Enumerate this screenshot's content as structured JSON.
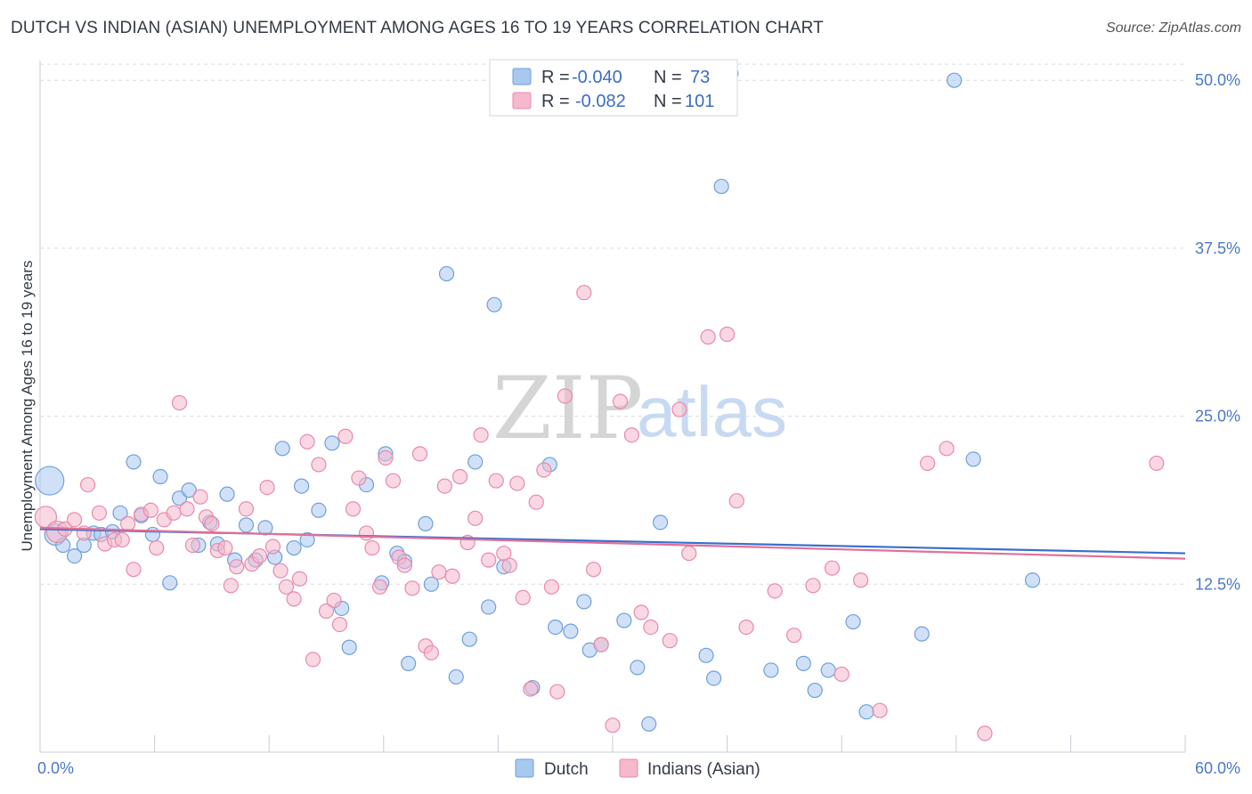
{
  "title": "DUTCH VS INDIAN (ASIAN) UNEMPLOYMENT AMONG AGES 16 TO 19 YEARS CORRELATION CHART",
  "source": "Source: ZipAtlas.com",
  "watermark": {
    "zip": "ZIP",
    "atlas": "atlas"
  },
  "colors": {
    "dutch_fill": "#a9c8f0",
    "dutch_stroke": "#6e9fdc",
    "dutch_line": "#3a6fcb",
    "indian_fill": "#f5b8cc",
    "indian_stroke": "#e88aa8",
    "indian_line": "#e0709a",
    "axis_text": "#4a78c8",
    "grid": "#d8dce4"
  },
  "legend": {
    "rows": [
      {
        "r_label": "R =",
        "r_value": "-0.040",
        "n_label": "N =",
        "n_value": "73"
      },
      {
        "r_label": "R =",
        "r_value": "-0.082",
        "n_label": "N =",
        "n_value": "101"
      }
    ]
  },
  "chart_data": {
    "type": "scatter",
    "title": "DUTCH VS INDIAN (ASIAN) UNEMPLOYMENT AMONG AGES 16 TO 19 YEARS CORRELATION CHART",
    "xlabel": "",
    "ylabel": "Unemployment Among Ages 16 to 19 years",
    "xlim": [
      0,
      60
    ],
    "ylim": [
      0,
      52
    ],
    "x_tick_labels": [
      "0.0%",
      "60.0%"
    ],
    "y_ticks": [
      12.5,
      25.0,
      37.5,
      50.0
    ],
    "y_tick_labels": [
      "12.5%",
      "25.0%",
      "37.5%",
      "50.0%"
    ],
    "grid": true,
    "series": [
      {
        "name": "Dutch",
        "r": -0.04,
        "n": 73,
        "trend": {
          "x": [
            0,
            60
          ],
          "y": [
            16.6,
            14.8
          ]
        },
        "points": [
          {
            "x": 0.5,
            "y": 20.2,
            "s": 3
          },
          {
            "x": 0.8,
            "y": 16.2,
            "s": 2
          },
          {
            "x": 1.2,
            "y": 15.4,
            "s": 1
          },
          {
            "x": 1.8,
            "y": 14.6,
            "s": 1
          },
          {
            "x": 2.3,
            "y": 15.4,
            "s": 1
          },
          {
            "x": 2.8,
            "y": 16.3,
            "s": 1
          },
          {
            "x": 3.2,
            "y": 16.2,
            "s": 1
          },
          {
            "x": 3.8,
            "y": 16.4,
            "s": 1
          },
          {
            "x": 4.2,
            "y": 17.8,
            "s": 1
          },
          {
            "x": 4.9,
            "y": 21.6,
            "s": 1
          },
          {
            "x": 5.3,
            "y": 17.6,
            "s": 1
          },
          {
            "x": 5.9,
            "y": 16.2,
            "s": 1
          },
          {
            "x": 6.3,
            "y": 20.5,
            "s": 1
          },
          {
            "x": 6.8,
            "y": 12.6,
            "s": 1
          },
          {
            "x": 7.3,
            "y": 18.9,
            "s": 1
          },
          {
            "x": 7.8,
            "y": 19.5,
            "s": 1
          },
          {
            "x": 8.3,
            "y": 15.4,
            "s": 1
          },
          {
            "x": 8.9,
            "y": 17.1,
            "s": 1
          },
          {
            "x": 9.3,
            "y": 15.5,
            "s": 1
          },
          {
            "x": 9.8,
            "y": 19.2,
            "s": 1
          },
          {
            "x": 10.2,
            "y": 14.3,
            "s": 1
          },
          {
            "x": 10.8,
            "y": 16.9,
            "s": 1
          },
          {
            "x": 11.3,
            "y": 14.3,
            "s": 1
          },
          {
            "x": 11.8,
            "y": 16.7,
            "s": 1
          },
          {
            "x": 12.3,
            "y": 14.5,
            "s": 1
          },
          {
            "x": 12.7,
            "y": 22.6,
            "s": 1
          },
          {
            "x": 13.3,
            "y": 15.2,
            "s": 1
          },
          {
            "x": 13.7,
            "y": 19.8,
            "s": 1
          },
          {
            "x": 14.0,
            "y": 15.8,
            "s": 1
          },
          {
            "x": 14.6,
            "y": 18.0,
            "s": 1
          },
          {
            "x": 15.3,
            "y": 23.0,
            "s": 1
          },
          {
            "x": 15.8,
            "y": 10.7,
            "s": 1
          },
          {
            "x": 16.2,
            "y": 7.8,
            "s": 1
          },
          {
            "x": 17.1,
            "y": 19.9,
            "s": 1
          },
          {
            "x": 17.9,
            "y": 12.6,
            "s": 1
          },
          {
            "x": 18.1,
            "y": 22.2,
            "s": 1
          },
          {
            "x": 18.7,
            "y": 14.8,
            "s": 1
          },
          {
            "x": 19.1,
            "y": 14.2,
            "s": 1
          },
          {
            "x": 19.3,
            "y": 6.6,
            "s": 1
          },
          {
            "x": 20.2,
            "y": 17.0,
            "s": 1
          },
          {
            "x": 20.5,
            "y": 12.5,
            "s": 1
          },
          {
            "x": 21.3,
            "y": 35.6,
            "s": 1
          },
          {
            "x": 21.8,
            "y": 5.6,
            "s": 1
          },
          {
            "x": 22.5,
            "y": 8.4,
            "s": 1
          },
          {
            "x": 22.8,
            "y": 21.6,
            "s": 1
          },
          {
            "x": 23.5,
            "y": 10.8,
            "s": 1
          },
          {
            "x": 23.8,
            "y": 33.3,
            "s": 1
          },
          {
            "x": 24.3,
            "y": 13.8,
            "s": 1
          },
          {
            "x": 25.8,
            "y": 4.8,
            "s": 1
          },
          {
            "x": 26.7,
            "y": 21.4,
            "s": 1
          },
          {
            "x": 27.0,
            "y": 9.3,
            "s": 1
          },
          {
            "x": 27.8,
            "y": 9.0,
            "s": 1
          },
          {
            "x": 28.5,
            "y": 11.2,
            "s": 1
          },
          {
            "x": 28.8,
            "y": 7.6,
            "s": 1
          },
          {
            "x": 29.4,
            "y": 8.0,
            "s": 1
          },
          {
            "x": 30.6,
            "y": 9.8,
            "s": 1
          },
          {
            "x": 31.3,
            "y": 6.3,
            "s": 1
          },
          {
            "x": 31.9,
            "y": 2.1,
            "s": 1
          },
          {
            "x": 32.5,
            "y": 17.1,
            "s": 1
          },
          {
            "x": 34.9,
            "y": 7.2,
            "s": 1
          },
          {
            "x": 35.3,
            "y": 5.5,
            "s": 1
          },
          {
            "x": 35.7,
            "y": 42.1,
            "s": 1
          },
          {
            "x": 36.2,
            "y": 50.5,
            "s": 1
          },
          {
            "x": 38.3,
            "y": 6.1,
            "s": 1
          },
          {
            "x": 40.0,
            "y": 6.6,
            "s": 1
          },
          {
            "x": 40.6,
            "y": 4.6,
            "s": 1
          },
          {
            "x": 41.3,
            "y": 6.1,
            "s": 1
          },
          {
            "x": 42.6,
            "y": 9.7,
            "s": 1
          },
          {
            "x": 43.3,
            "y": 3.0,
            "s": 1
          },
          {
            "x": 46.2,
            "y": 8.8,
            "s": 1
          },
          {
            "x": 47.9,
            "y": 50.0,
            "s": 1
          },
          {
            "x": 48.9,
            "y": 21.8,
            "s": 1
          },
          {
            "x": 52.0,
            "y": 12.8,
            "s": 1
          }
        ]
      },
      {
        "name": "Indians (Asian)",
        "r": -0.082,
        "n": 101,
        "trend": {
          "x": [
            0,
            60
          ],
          "y": [
            16.7,
            14.4
          ]
        },
        "points": [
          {
            "x": 0.3,
            "y": 17.5,
            "s": 2
          },
          {
            "x": 0.9,
            "y": 16.4,
            "s": 2
          },
          {
            "x": 1.3,
            "y": 16.6,
            "s": 1
          },
          {
            "x": 1.8,
            "y": 17.3,
            "s": 1
          },
          {
            "x": 2.3,
            "y": 16.3,
            "s": 1
          },
          {
            "x": 2.5,
            "y": 19.9,
            "s": 1
          },
          {
            "x": 3.1,
            "y": 17.8,
            "s": 1
          },
          {
            "x": 3.4,
            "y": 15.5,
            "s": 1
          },
          {
            "x": 3.9,
            "y": 15.8,
            "s": 1
          },
          {
            "x": 4.3,
            "y": 15.8,
            "s": 1
          },
          {
            "x": 4.6,
            "y": 17.0,
            "s": 1
          },
          {
            "x": 4.9,
            "y": 13.6,
            "s": 1
          },
          {
            "x": 5.3,
            "y": 17.7,
            "s": 1
          },
          {
            "x": 5.8,
            "y": 18.0,
            "s": 1
          },
          {
            "x": 6.1,
            "y": 15.2,
            "s": 1
          },
          {
            "x": 6.5,
            "y": 17.3,
            "s": 1
          },
          {
            "x": 7.0,
            "y": 17.8,
            "s": 1
          },
          {
            "x": 7.3,
            "y": 26.0,
            "s": 1
          },
          {
            "x": 7.7,
            "y": 18.1,
            "s": 1
          },
          {
            "x": 8.0,
            "y": 15.4,
            "s": 1
          },
          {
            "x": 8.4,
            "y": 19.0,
            "s": 1
          },
          {
            "x": 8.7,
            "y": 17.5,
            "s": 1
          },
          {
            "x": 9.0,
            "y": 17.0,
            "s": 1
          },
          {
            "x": 9.3,
            "y": 15.0,
            "s": 1
          },
          {
            "x": 9.7,
            "y": 15.2,
            "s": 1
          },
          {
            "x": 10.0,
            "y": 12.4,
            "s": 1
          },
          {
            "x": 10.3,
            "y": 13.8,
            "s": 1
          },
          {
            "x": 10.8,
            "y": 18.1,
            "s": 1
          },
          {
            "x": 11.1,
            "y": 14.0,
            "s": 1
          },
          {
            "x": 11.5,
            "y": 14.6,
            "s": 1
          },
          {
            "x": 11.9,
            "y": 19.7,
            "s": 1
          },
          {
            "x": 12.2,
            "y": 15.3,
            "s": 1
          },
          {
            "x": 12.6,
            "y": 13.5,
            "s": 1
          },
          {
            "x": 12.9,
            "y": 12.3,
            "s": 1
          },
          {
            "x": 13.3,
            "y": 11.4,
            "s": 1
          },
          {
            "x": 13.6,
            "y": 12.9,
            "s": 1
          },
          {
            "x": 14.0,
            "y": 23.1,
            "s": 1
          },
          {
            "x": 14.3,
            "y": 6.9,
            "s": 1
          },
          {
            "x": 14.6,
            "y": 21.4,
            "s": 1
          },
          {
            "x": 15.0,
            "y": 10.5,
            "s": 1
          },
          {
            "x": 15.4,
            "y": 11.3,
            "s": 1
          },
          {
            "x": 15.7,
            "y": 9.5,
            "s": 1
          },
          {
            "x": 16.0,
            "y": 23.5,
            "s": 1
          },
          {
            "x": 16.4,
            "y": 18.1,
            "s": 1
          },
          {
            "x": 16.7,
            "y": 20.4,
            "s": 1
          },
          {
            "x": 17.1,
            "y": 16.3,
            "s": 1
          },
          {
            "x": 17.4,
            "y": 15.2,
            "s": 1
          },
          {
            "x": 17.8,
            "y": 12.3,
            "s": 1
          },
          {
            "x": 18.1,
            "y": 21.9,
            "s": 1
          },
          {
            "x": 18.5,
            "y": 20.2,
            "s": 1
          },
          {
            "x": 18.8,
            "y": 14.5,
            "s": 1
          },
          {
            "x": 19.1,
            "y": 13.9,
            "s": 1
          },
          {
            "x": 19.5,
            "y": 12.2,
            "s": 1
          },
          {
            "x": 19.9,
            "y": 22.2,
            "s": 1
          },
          {
            "x": 20.2,
            "y": 7.9,
            "s": 1
          },
          {
            "x": 20.5,
            "y": 7.4,
            "s": 1
          },
          {
            "x": 20.9,
            "y": 13.4,
            "s": 1
          },
          {
            "x": 21.2,
            "y": 19.8,
            "s": 1
          },
          {
            "x": 21.6,
            "y": 13.1,
            "s": 1
          },
          {
            "x": 22.0,
            "y": 20.5,
            "s": 1
          },
          {
            "x": 22.4,
            "y": 15.6,
            "s": 1
          },
          {
            "x": 22.8,
            "y": 17.4,
            "s": 1
          },
          {
            "x": 23.1,
            "y": 23.6,
            "s": 1
          },
          {
            "x": 23.5,
            "y": 14.3,
            "s": 1
          },
          {
            "x": 23.9,
            "y": 20.2,
            "s": 1
          },
          {
            "x": 24.3,
            "y": 14.8,
            "s": 1
          },
          {
            "x": 24.6,
            "y": 13.9,
            "s": 1
          },
          {
            "x": 25.0,
            "y": 20.0,
            "s": 1
          },
          {
            "x": 25.3,
            "y": 11.5,
            "s": 1
          },
          {
            "x": 25.7,
            "y": 4.7,
            "s": 1
          },
          {
            "x": 26.0,
            "y": 18.6,
            "s": 1
          },
          {
            "x": 26.4,
            "y": 21.0,
            "s": 1
          },
          {
            "x": 26.8,
            "y": 12.3,
            "s": 1
          },
          {
            "x": 27.1,
            "y": 4.5,
            "s": 1
          },
          {
            "x": 27.5,
            "y": 26.5,
            "s": 1
          },
          {
            "x": 28.5,
            "y": 34.2,
            "s": 1
          },
          {
            "x": 29.0,
            "y": 13.6,
            "s": 1
          },
          {
            "x": 29.4,
            "y": 8.0,
            "s": 1
          },
          {
            "x": 30.0,
            "y": 2.0,
            "s": 1
          },
          {
            "x": 30.4,
            "y": 26.1,
            "s": 1
          },
          {
            "x": 31.0,
            "y": 23.6,
            "s": 1
          },
          {
            "x": 31.5,
            "y": 10.4,
            "s": 1
          },
          {
            "x": 32.0,
            "y": 9.3,
            "s": 1
          },
          {
            "x": 33.0,
            "y": 8.3,
            "s": 1
          },
          {
            "x": 33.5,
            "y": 25.5,
            "s": 1
          },
          {
            "x": 34.0,
            "y": 14.8,
            "s": 1
          },
          {
            "x": 35.0,
            "y": 30.9,
            "s": 1
          },
          {
            "x": 36.0,
            "y": 31.1,
            "s": 1
          },
          {
            "x": 36.5,
            "y": 18.7,
            "s": 1
          },
          {
            "x": 37.0,
            "y": 9.3,
            "s": 1
          },
          {
            "x": 38.5,
            "y": 12.0,
            "s": 1
          },
          {
            "x": 39.5,
            "y": 8.7,
            "s": 1
          },
          {
            "x": 40.5,
            "y": 12.4,
            "s": 1
          },
          {
            "x": 41.5,
            "y": 13.7,
            "s": 1
          },
          {
            "x": 42.0,
            "y": 5.8,
            "s": 1
          },
          {
            "x": 43.0,
            "y": 12.8,
            "s": 1
          },
          {
            "x": 44.0,
            "y": 3.1,
            "s": 1
          },
          {
            "x": 46.5,
            "y": 21.5,
            "s": 1
          },
          {
            "x": 47.5,
            "y": 22.6,
            "s": 1
          },
          {
            "x": 49.5,
            "y": 1.4,
            "s": 1
          },
          {
            "x": 58.5,
            "y": 21.5,
            "s": 1
          }
        ]
      }
    ],
    "legend_entries": [
      "Dutch",
      "Indians (Asian)"
    ],
    "legend_position": "top-center"
  }
}
